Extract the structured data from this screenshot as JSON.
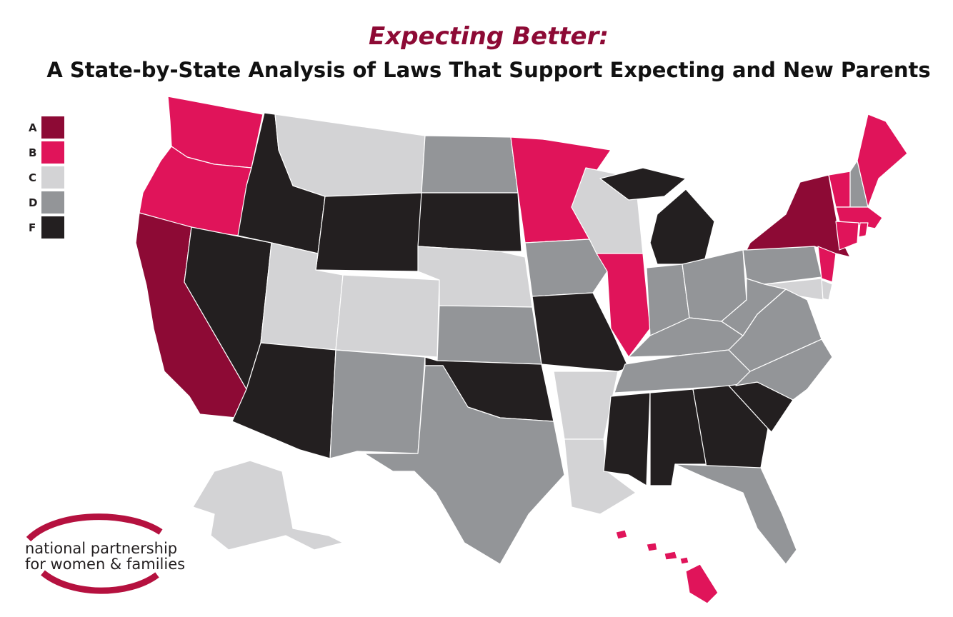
{
  "title": "Expecting Better:",
  "subtitle": "A State-by-State Analysis of Laws That Support Expecting and New Parents",
  "legend": [
    {
      "grade": "A",
      "color": "#8d0a35"
    },
    {
      "grade": "B",
      "color": "#e0145a"
    },
    {
      "grade": "C",
      "color": "#d3d3d5"
    },
    {
      "grade": "D",
      "color": "#939598"
    },
    {
      "grade": "F",
      "color": "#231f20"
    }
  ],
  "state_grades": [
    "B",
    "B",
    "A",
    "F",
    "F",
    "C",
    "F",
    "C",
    "C",
    "F",
    "D",
    "D",
    "F",
    "C",
    "D",
    "F",
    "D",
    "B",
    "D",
    "F",
    "C",
    "C",
    "C",
    "B",
    "F",
    "D",
    "D",
    "D",
    "D",
    "F",
    "F",
    "F",
    "D",
    "F",
    "D",
    "D",
    "D",
    "D",
    "A",
    "B",
    "C",
    "C",
    "B",
    "D",
    "B",
    "B",
    "B",
    "B",
    "C",
    "B"
  ],
  "logo": {
    "line1": "national partnership",
    "line2": "for women & families"
  }
}
